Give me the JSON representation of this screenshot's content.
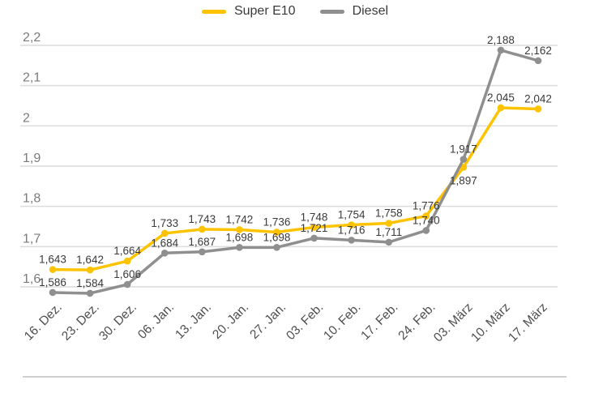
{
  "legend": {
    "items": [
      {
        "label": "Super E10",
        "color": "#fdc300"
      },
      {
        "label": "Diesel",
        "color": "#8f8f8f"
      }
    ]
  },
  "colors": {
    "super_e10": "#fdc300",
    "diesel": "#8f8f8f",
    "gridline": "#dcdcdc",
    "y_tick_text": "#7b7b7b",
    "x_label_text": "#4e4e4e",
    "data_label_text": "#3a3a3a",
    "divider": "#cfcfcf",
    "background": "#ffffff"
  },
  "chart_data": {
    "type": "line",
    "title": "",
    "xlabel": "",
    "ylabel": "",
    "grid": true,
    "legend_position": "top-center",
    "ylim": [
      1.6,
      2.2
    ],
    "decimal_separator": ",",
    "value_decimals": 3,
    "categories": [
      "16. Dez.",
      "23. Dez.",
      "30. Dez.",
      "06. Jan.",
      "13. Jan.",
      "20. Jan.",
      "27. Jan.",
      "03. Feb.",
      "10. Feb.",
      "17. Feb.",
      "24. Feb.",
      "03. März",
      "10. März",
      "17. März"
    ],
    "y_ticks": [
      {
        "v": 2.2,
        "label": "2,2"
      },
      {
        "v": 2.1,
        "label": "2,1"
      },
      {
        "v": 2.0,
        "label": "2"
      },
      {
        "v": 1.9,
        "label": "1,9"
      },
      {
        "v": 1.8,
        "label": "1,8"
      },
      {
        "v": 1.7,
        "label": "1,7"
      },
      {
        "v": 1.6,
        "label": "1,6"
      }
    ],
    "series": [
      {
        "name": "Super E10",
        "color": "#fdc300",
        "values": [
          1.643,
          1.642,
          1.664,
          1.733,
          1.743,
          1.742,
          1.736,
          1.748,
          1.754,
          1.758,
          1.776,
          1.897,
          2.045,
          2.042
        ],
        "label_below_indices": [
          11
        ]
      },
      {
        "name": "Diesel",
        "color": "#8f8f8f",
        "values": [
          1.586,
          1.584,
          1.606,
          1.684,
          1.687,
          1.698,
          1.698,
          1.721,
          1.716,
          1.711,
          1.74,
          1.917,
          2.188,
          2.162
        ],
        "label_below_indices": []
      }
    ]
  }
}
